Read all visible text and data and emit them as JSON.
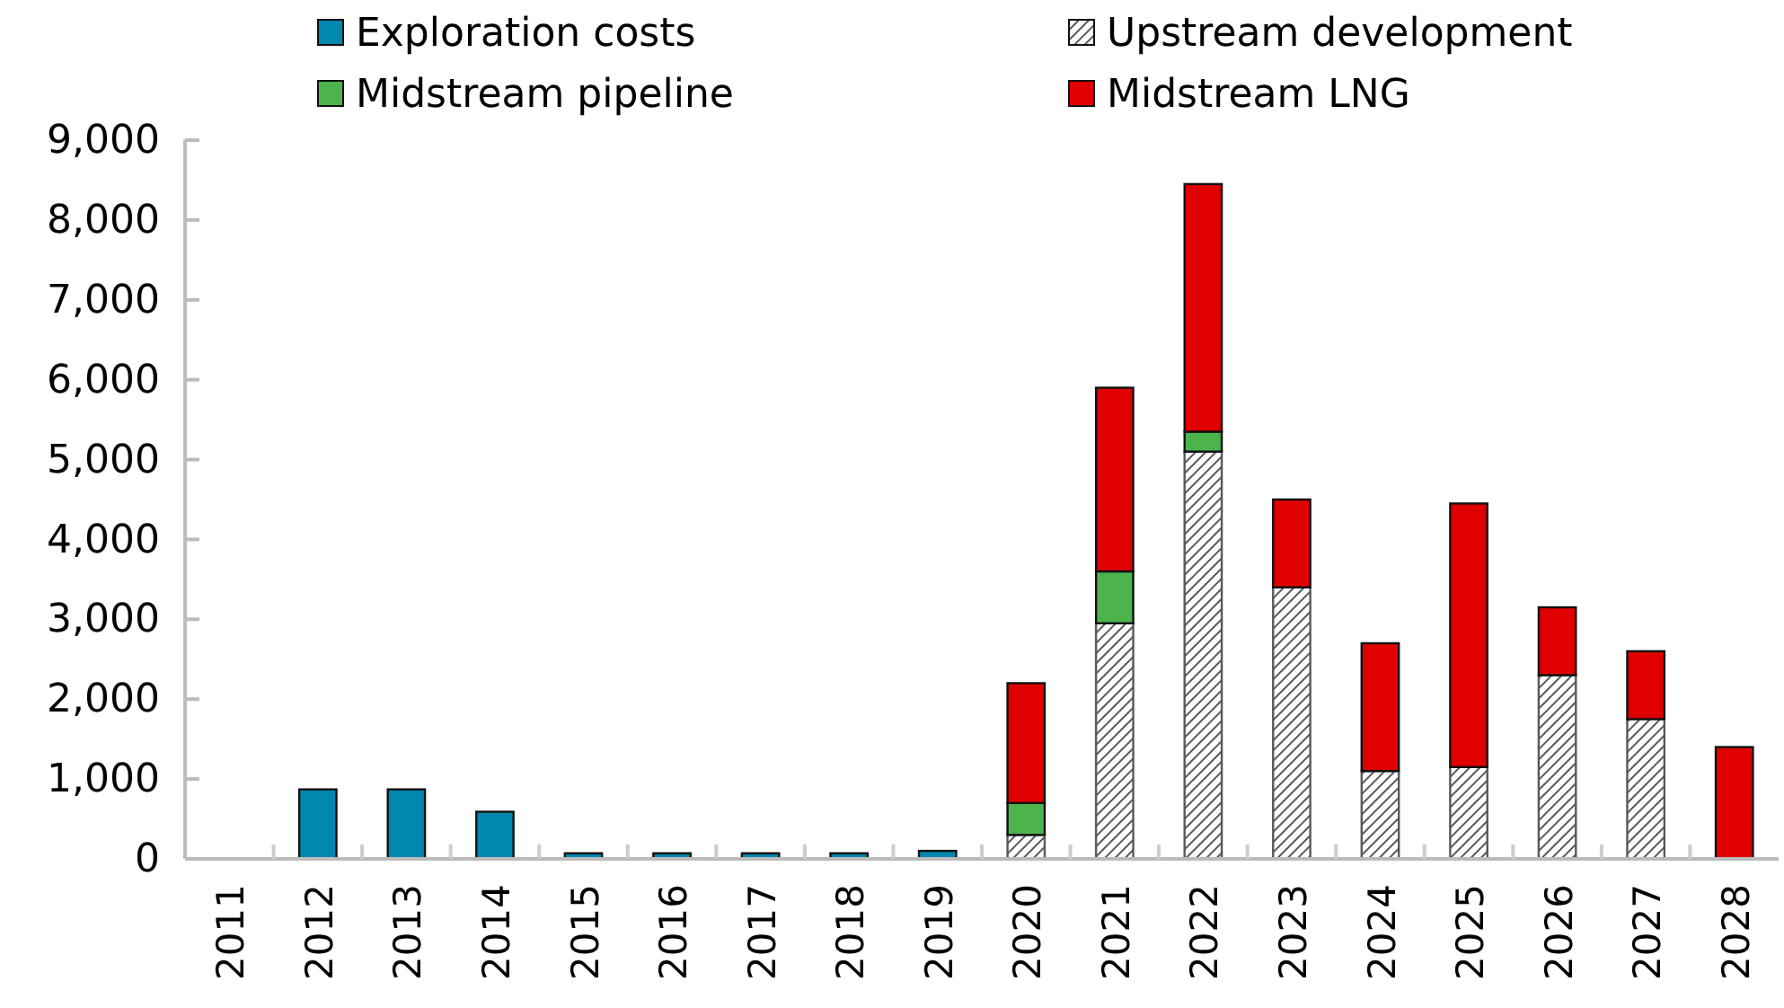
{
  "chart_data": {
    "type": "bar",
    "stacked": true,
    "legend": "top",
    "grid": false,
    "categories": [
      "2011",
      "2012",
      "2013",
      "2014",
      "2015",
      "2016",
      "2017",
      "2018",
      "2019",
      "2020",
      "2021",
      "2022",
      "2023",
      "2024",
      "2025",
      "2026",
      "2027",
      "2028"
    ],
    "series": [
      {
        "name": "Exploration costs",
        "color": "#0088b0",
        "values": [
          0,
          870,
          870,
          590,
          70,
          70,
          70,
          70,
          100,
          null,
          null,
          null,
          null,
          null,
          null,
          null,
          null,
          null
        ]
      },
      {
        "name": "Upstream development",
        "color": "#595959",
        "values": [
          null,
          null,
          null,
          null,
          null,
          null,
          null,
          null,
          null,
          300,
          2950,
          5100,
          3400,
          1100,
          1150,
          2300,
          1750,
          0
        ]
      },
      {
        "name": "Midstream pipeline",
        "color": "#4db34d",
        "values": [
          null,
          null,
          null,
          null,
          null,
          null,
          null,
          null,
          null,
          400,
          650,
          250,
          null,
          null,
          null,
          null,
          null,
          null
        ]
      },
      {
        "name": "Midstream LNG",
        "color": "#e00000",
        "values": [
          null,
          null,
          null,
          null,
          null,
          null,
          null,
          null,
          null,
          1500,
          2300,
          3100,
          1100,
          1600,
          3300,
          850,
          850,
          1400
        ]
      }
    ],
    "ylim": [
      0,
      9000
    ],
    "yticks": [
      {
        "value": 0,
        "label": "0"
      },
      {
        "value": 1000,
        "label": "1,000"
      },
      {
        "value": 2000,
        "label": "2,000"
      },
      {
        "value": 3000,
        "label": "3,000"
      },
      {
        "value": 4000,
        "label": "4,000"
      },
      {
        "value": 5000,
        "label": "5,000"
      },
      {
        "value": 6000,
        "label": "6,000"
      },
      {
        "value": 7000,
        "label": "7,000"
      },
      {
        "value": 8000,
        "label": "8,000"
      },
      {
        "value": 9000,
        "label": "9,000"
      }
    ]
  }
}
